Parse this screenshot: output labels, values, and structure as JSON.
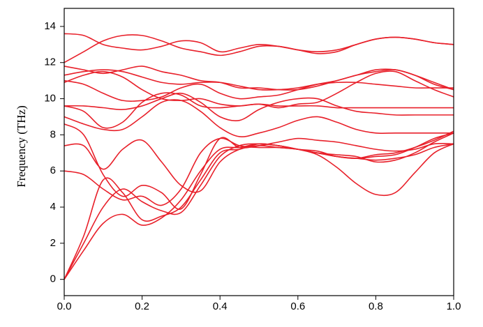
{
  "chart_data": {
    "type": "line",
    "y_label": "Frequency (THz)",
    "color": "#e8202a",
    "xlim": [
      0,
      1
    ],
    "ylim": [
      -0.9,
      15
    ],
    "xticks": [
      {
        "value": 0,
        "label": "0.0"
      },
      0.2,
      0.4,
      0.6,
      0.8,
      {
        "value": 1,
        "label": "1.0"
      }
    ],
    "yticks": [
      0,
      2,
      4,
      6,
      8,
      10,
      12,
      14
    ],
    "x": [
      0,
      0.05,
      0.1,
      0.15,
      0.2,
      0.25,
      0.3,
      0.35,
      0.4,
      0.45,
      0.5,
      0.55,
      0.6,
      0.65,
      0.7,
      0.75,
      0.8,
      0.85,
      0.9,
      0.95,
      1
    ],
    "series": [
      {
        "values": [
          0,
          1.6,
          3.1,
          3.6,
          3.0,
          3.4,
          4.4,
          6.0,
          7.2,
          7.3,
          7.5,
          7.4,
          7.2,
          6.9,
          6.2,
          5.3,
          4.7,
          4.8,
          5.9,
          7.0,
          7.5
        ]
      },
      {
        "values": [
          0,
          2.0,
          4.0,
          5.0,
          4.3,
          3.8,
          3.7,
          5.2,
          6.8,
          7.4,
          7.5,
          7.4,
          7.2,
          7.1,
          6.8,
          6.7,
          6.6,
          6.7,
          6.9,
          7.3,
          7.5
        ]
      },
      {
        "values": [
          0,
          2.4,
          5.5,
          4.8,
          3.3,
          3.5,
          4.0,
          5.5,
          7.0,
          7.2,
          7.5,
          7.4,
          7.2,
          7.0,
          6.9,
          6.8,
          6.5,
          6.6,
          7.0,
          7.6,
          8.1
        ]
      },
      {
        "values": [
          6.0,
          5.8,
          5.0,
          4.4,
          4.6,
          4.1,
          5.0,
          7.0,
          7.8,
          7.4,
          7.3,
          7.3,
          7.2,
          7.0,
          6.8,
          6.7,
          6.9,
          7.0,
          7.3,
          7.7,
          8.2
        ]
      },
      {
        "values": [
          7.4,
          7.4,
          6.1,
          7.2,
          7.7,
          6.5,
          5.2,
          4.9,
          6.5,
          7.2,
          7.4,
          7.3,
          7.2,
          7.0,
          6.8,
          6.7,
          6.8,
          6.9,
          7.3,
          7.8,
          8.1
        ]
      },
      {
        "values": [
          8.6,
          8.0,
          5.8,
          4.6,
          5.2,
          4.8,
          3.9,
          5.8,
          7.8,
          7.3,
          7.4,
          7.6,
          7.8,
          7.7,
          7.6,
          7.4,
          7.2,
          7.1,
          7.2,
          7.5,
          7.5
        ]
      },
      {
        "values": [
          9.0,
          8.6,
          8.3,
          8.3,
          9.0,
          9.8,
          9.9,
          9.3,
          8.4,
          7.9,
          8.1,
          8.4,
          8.8,
          9.0,
          8.7,
          8.3,
          8.1,
          8.1,
          8.1,
          8.1,
          8.1
        ]
      },
      {
        "values": [
          9.6,
          9.6,
          9.5,
          9.4,
          9.6,
          10.0,
          10.3,
          9.8,
          9.0,
          8.8,
          9.4,
          9.8,
          10.0,
          10.0,
          9.6,
          9.3,
          9.2,
          9.1,
          9.1,
          9.1,
          9.1
        ]
      },
      {
        "values": [
          9.6,
          9.3,
          8.4,
          8.7,
          9.8,
          10.3,
          10.2,
          9.6,
          9.5,
          9.6,
          9.7,
          9.6,
          9.6,
          9.6,
          9.5,
          9.5,
          9.5,
          9.5,
          9.5,
          9.5,
          9.5
        ]
      },
      {
        "values": [
          10.9,
          11.3,
          11.5,
          11.2,
          10.5,
          10.0,
          9.9,
          10.0,
          9.7,
          9.6,
          9.7,
          9.5,
          9.7,
          9.8,
          10.3,
          10.9,
          11.4,
          11.5,
          11.0,
          10.5,
          10.1
        ]
      },
      {
        "values": [
          11.0,
          10.8,
          10.3,
          9.9,
          9.9,
          10.1,
          10.6,
          10.8,
          10.3,
          10.0,
          10.1,
          10.2,
          10.5,
          10.8,
          11.0,
          11.3,
          11.5,
          11.6,
          11.3,
          10.9,
          10.5
        ]
      },
      {
        "values": [
          11.3,
          11.5,
          11.6,
          11.5,
          11.2,
          10.9,
          10.8,
          10.9,
          10.9,
          10.7,
          10.5,
          10.5,
          10.6,
          10.8,
          10.9,
          10.9,
          10.8,
          10.7,
          10.6,
          10.6,
          10.6
        ]
      },
      {
        "values": [
          11.8,
          11.6,
          11.4,
          11.6,
          11.8,
          11.5,
          11.3,
          11.0,
          10.9,
          10.6,
          10.6,
          10.5,
          10.5,
          10.7,
          11.0,
          11.3,
          11.6,
          11.6,
          11.3,
          10.8,
          10.5
        ]
      },
      {
        "values": [
          13.6,
          13.5,
          13.0,
          12.8,
          12.7,
          12.9,
          13.2,
          13.1,
          12.6,
          12.8,
          13.0,
          12.9,
          12.7,
          12.6,
          12.7,
          13.0,
          13.3,
          13.4,
          13.3,
          13.1,
          13.0
        ]
      },
      {
        "values": [
          12.0,
          12.6,
          13.2,
          13.5,
          13.5,
          13.2,
          12.8,
          12.6,
          12.4,
          12.6,
          12.9,
          12.9,
          12.7,
          12.5,
          12.6,
          13.0,
          13.3,
          13.4,
          13.3,
          13.1,
          13.0
        ]
      }
    ]
  }
}
